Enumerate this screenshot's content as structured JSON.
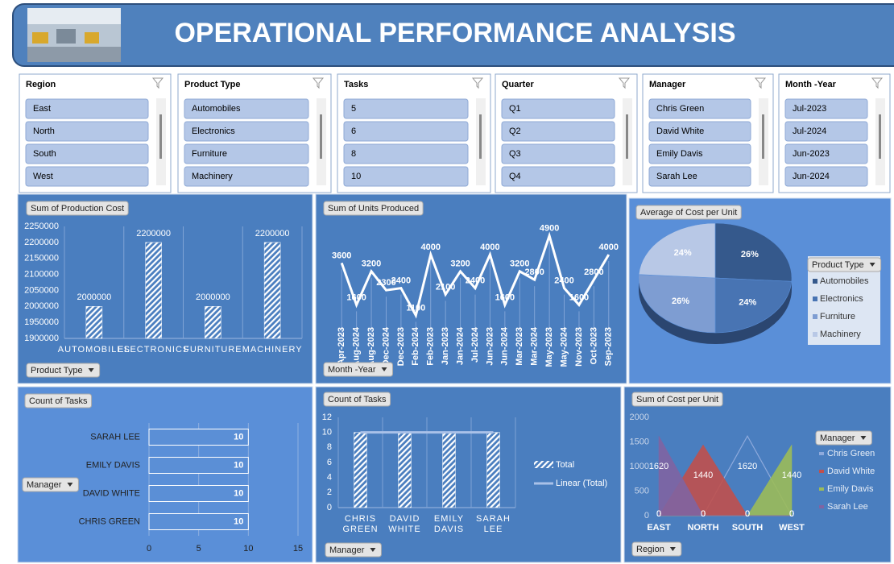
{
  "header": {
    "title": "OPERATIONAL PERFORMANCE ANALYSIS"
  },
  "slicers": [
    {
      "title": "Region",
      "items": [
        "East",
        "North",
        "South",
        "West"
      ]
    },
    {
      "title": "Product Type",
      "items": [
        "Automobiles",
        "Electronics",
        "Furniture",
        "Machinery"
      ]
    },
    {
      "title": "Tasks",
      "items": [
        "5",
        "6",
        "8",
        "10"
      ]
    },
    {
      "title": "Quarter",
      "items": [
        "Q1",
        "Q2",
        "Q3",
        "Q4"
      ]
    },
    {
      "title": "Manager",
      "items": [
        "Chris Green",
        "David White",
        "Emily Davis",
        "Sarah Lee"
      ]
    },
    {
      "title": "Month -Year",
      "items": [
        "Jul-2023",
        "Jul-2024",
        "Jun-2023",
        "Jun-2024"
      ]
    }
  ],
  "chart_data": [
    {
      "type": "bar",
      "title": "Sum of Production Cost",
      "filter_button": "Product Type",
      "categories": [
        "AUTOMOBILES",
        "ELECTRONICS",
        "FURNITURE",
        "MACHINERY"
      ],
      "values": [
        2000000,
        2200000,
        2000000,
        2200000
      ],
      "ylim": [
        1900000,
        2250000
      ],
      "yticks": [
        1900000,
        1950000,
        2000000,
        2050000,
        2100000,
        2150000,
        2200000,
        2250000
      ],
      "grid": true,
      "color": "#ffffff"
    },
    {
      "type": "line",
      "title": "Sum of Units Produced",
      "filter_button": "Month -Year",
      "categories": [
        "Apr-2023",
        "Aug-2024",
        "Aug-2023",
        "Dec-2024",
        "Dec-2023",
        "Feb-2024",
        "Feb-2023",
        "Jan-2023",
        "Jan-2024",
        "Jul-2024",
        "Jun-2023",
        "Jun-2024",
        "Mar-2023",
        "Mar-2024",
        "May-2023",
        "May-2024",
        "Nov-2023",
        "Oct-2023",
        "Sep-2023"
      ],
      "values": [
        3600,
        1600,
        3200,
        2300,
        2400,
        1100,
        4000,
        2100,
        3200,
        2400,
        4000,
        1600,
        3200,
        2800,
        4900,
        2400,
        1600,
        2800,
        4000
      ],
      "ylim": [
        0,
        5000
      ],
      "color": "#ffffff"
    },
    {
      "type": "pie",
      "title": "Average of Cost per Unit",
      "legend_title": "Product Type",
      "categories": [
        "Automobiles",
        "Electronics",
        "Furniture",
        "Machinery"
      ],
      "values": [
        26,
        24,
        26,
        24
      ],
      "value_labels": [
        "26%",
        "24%",
        "26%",
        "24%"
      ],
      "colors": [
        "#35598c",
        "#4874b3",
        "#7e9dd2",
        "#b8c8e6"
      ]
    },
    {
      "type": "bar",
      "orientation": "horizontal",
      "title": "Count of Tasks",
      "filter_button": "Manager",
      "categories": [
        "SARAH LEE",
        "EMILY DAVIS",
        "DAVID WHITE",
        "CHRIS GREEN"
      ],
      "values": [
        10,
        10,
        10,
        10
      ],
      "xlim": [
        0,
        15
      ],
      "xticks": [
        0,
        5,
        10,
        15
      ],
      "grid": true,
      "color": "#5b8fd6"
    },
    {
      "type": "bar",
      "title": "Count of Tasks",
      "filter_button": "Manager",
      "categories": [
        "CHRIS GREEN",
        "DAVID WHITE",
        "EMILY DAVIS",
        "SARAH LEE"
      ],
      "series": [
        {
          "name": "Total",
          "values": [
            10,
            10,
            10,
            10
          ],
          "color": "#ffffff"
        }
      ],
      "trendline": {
        "name": "Linear (Total)",
        "color": "#a9c1e8"
      },
      "ylim": [
        0,
        12
      ],
      "yticks": [
        0,
        2,
        4,
        6,
        8,
        10,
        12
      ],
      "grid": false
    },
    {
      "type": "area",
      "title": "Sum of Cost per Unit",
      "filter_button": "Region",
      "legend_title": "Manager",
      "categories": [
        "EAST",
        "NORTH",
        "SOUTH",
        "WEST"
      ],
      "series": [
        {
          "name": "Chris Green",
          "color": "#8eaadc",
          "values": [
            0,
            0,
            1620,
            0
          ]
        },
        {
          "name": "David White",
          "color": "#c0504d",
          "values": [
            0,
            1440,
            0,
            0
          ]
        },
        {
          "name": "Emily Davis",
          "color": "#9bbb59",
          "values": [
            0,
            0,
            0,
            1440
          ]
        },
        {
          "name": "Sarah Lee",
          "color": "#8064a2",
          "values": [
            1620,
            0,
            0,
            0
          ]
        }
      ],
      "ylim": [
        0,
        2000
      ],
      "yticks": [
        0,
        500,
        1000,
        1500,
        2000
      ]
    }
  ]
}
